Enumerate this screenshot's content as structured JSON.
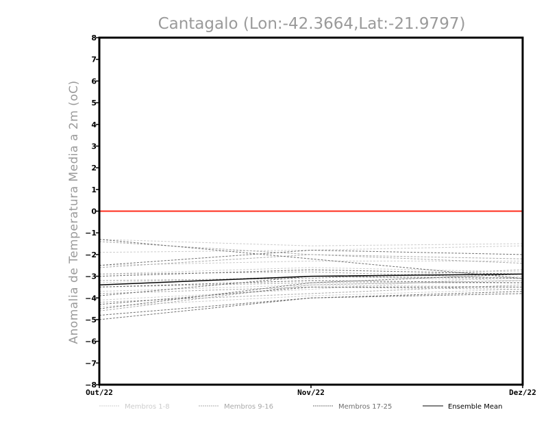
{
  "chart_data": {
    "type": "line",
    "title": "Cantagalo (Lon:-42.3664,Lat:-21.9797)",
    "xlabel": "",
    "ylabel": "Anomalia de Temperatura Media a 2m (oC)",
    "ylim": [
      -8,
      8
    ],
    "yticks": [
      -8,
      -7,
      -6,
      -5,
      -4,
      -3,
      -2,
      -1,
      0,
      1,
      2,
      3,
      4,
      5,
      6,
      7,
      8
    ],
    "categories": [
      "Out/22",
      "Nov/22",
      "Dez/22"
    ],
    "reference_line": {
      "y": 0,
      "color": "#ff2a1a"
    },
    "series": [
      {
        "name": "Membros 1-8",
        "group": "g1",
        "values": [
          -1.3,
          -1.6,
          -1.5
        ]
      },
      {
        "name": "Membros 1-8",
        "group": "g1",
        "values": [
          -1.9,
          -1.8,
          -1.6
        ]
      },
      {
        "name": "Membros 1-8",
        "group": "g1",
        "values": [
          -2.5,
          -2.3,
          -2.3
        ]
      },
      {
        "name": "Membros 1-8",
        "group": "g1",
        "values": [
          -2.9,
          -2.6,
          -2.8
        ]
      },
      {
        "name": "Membros 1-8",
        "group": "g1",
        "values": [
          -3.3,
          -3.0,
          -3.2
        ]
      },
      {
        "name": "Membros 1-8",
        "group": "g1",
        "values": [
          -3.7,
          -3.4,
          -3.5
        ]
      },
      {
        "name": "Membros 1-8",
        "group": "g1",
        "values": [
          -4.1,
          -3.6,
          -3.0
        ]
      },
      {
        "name": "Membros 1-8",
        "group": "g1",
        "values": [
          -4.4,
          -3.9,
          -3.6
        ]
      },
      {
        "name": "Membros 9-16",
        "group": "g2",
        "values": [
          -1.4,
          -2.0,
          -2.2
        ]
      },
      {
        "name": "Membros 9-16",
        "group": "g2",
        "values": [
          -2.6,
          -2.0,
          -2.4
        ]
      },
      {
        "name": "Membros 9-16",
        "group": "g2",
        "values": [
          -2.9,
          -2.8,
          -3.1
        ]
      },
      {
        "name": "Membros 9-16",
        "group": "g2",
        "values": [
          -3.2,
          -3.1,
          -2.7
        ]
      },
      {
        "name": "Membros 9-16",
        "group": "g2",
        "values": [
          -3.5,
          -3.3,
          -3.3
        ]
      },
      {
        "name": "Membros 9-16",
        "group": "g2",
        "values": [
          -3.8,
          -3.5,
          -3.6
        ]
      },
      {
        "name": "Membros 9-16",
        "group": "g2",
        "values": [
          -4.2,
          -3.8,
          -3.4
        ]
      },
      {
        "name": "Membros 9-16",
        "group": "g2",
        "values": [
          -4.6,
          -3.4,
          -3.2
        ]
      },
      {
        "name": "Membros 17-25",
        "group": "g3",
        "values": [
          -1.3,
          -2.2,
          -3.1
        ]
      },
      {
        "name": "Membros 17-25",
        "group": "g3",
        "values": [
          -2.5,
          -1.8,
          -2.0
        ]
      },
      {
        "name": "Membros 17-25",
        "group": "g3",
        "values": [
          -3.0,
          -2.7,
          -2.9
        ]
      },
      {
        "name": "Membros 17-25",
        "group": "g3",
        "values": [
          -3.5,
          -3.2,
          -3.3
        ]
      },
      {
        "name": "Membros 17-25",
        "group": "g3",
        "values": [
          -3.9,
          -3.0,
          -3.1
        ]
      },
      {
        "name": "Membros 17-25",
        "group": "g3",
        "values": [
          -4.3,
          -3.5,
          -3.5
        ]
      },
      {
        "name": "Membros 17-25",
        "group": "g3",
        "values": [
          -4.5,
          -3.3,
          -2.9
        ]
      },
      {
        "name": "Membros 17-25",
        "group": "g3",
        "values": [
          -4.8,
          -4.0,
          -3.7
        ]
      },
      {
        "name": "Membros 17-25",
        "group": "g3",
        "values": [
          -5.0,
          -4.0,
          -3.8
        ]
      },
      {
        "name": "Ensemble Mean",
        "group": "mean",
        "values": [
          -3.4,
          -3.0,
          -2.9
        ]
      }
    ],
    "legend": [
      {
        "label": "Membros 1-8",
        "group": "g1"
      },
      {
        "label": "Membros 9-16",
        "group": "g2"
      },
      {
        "label": "Membros 17-25",
        "group": "g3"
      },
      {
        "label": "Ensemble Mean",
        "group": "mean"
      }
    ],
    "styles": {
      "g1": {
        "color": "#cccccc",
        "dashed": true
      },
      "g2": {
        "color": "#a8a8a8",
        "dashed": true
      },
      "g3": {
        "color": "#6e6e6e",
        "dashed": true
      },
      "mean": {
        "color": "#000000",
        "dashed": false
      }
    }
  }
}
